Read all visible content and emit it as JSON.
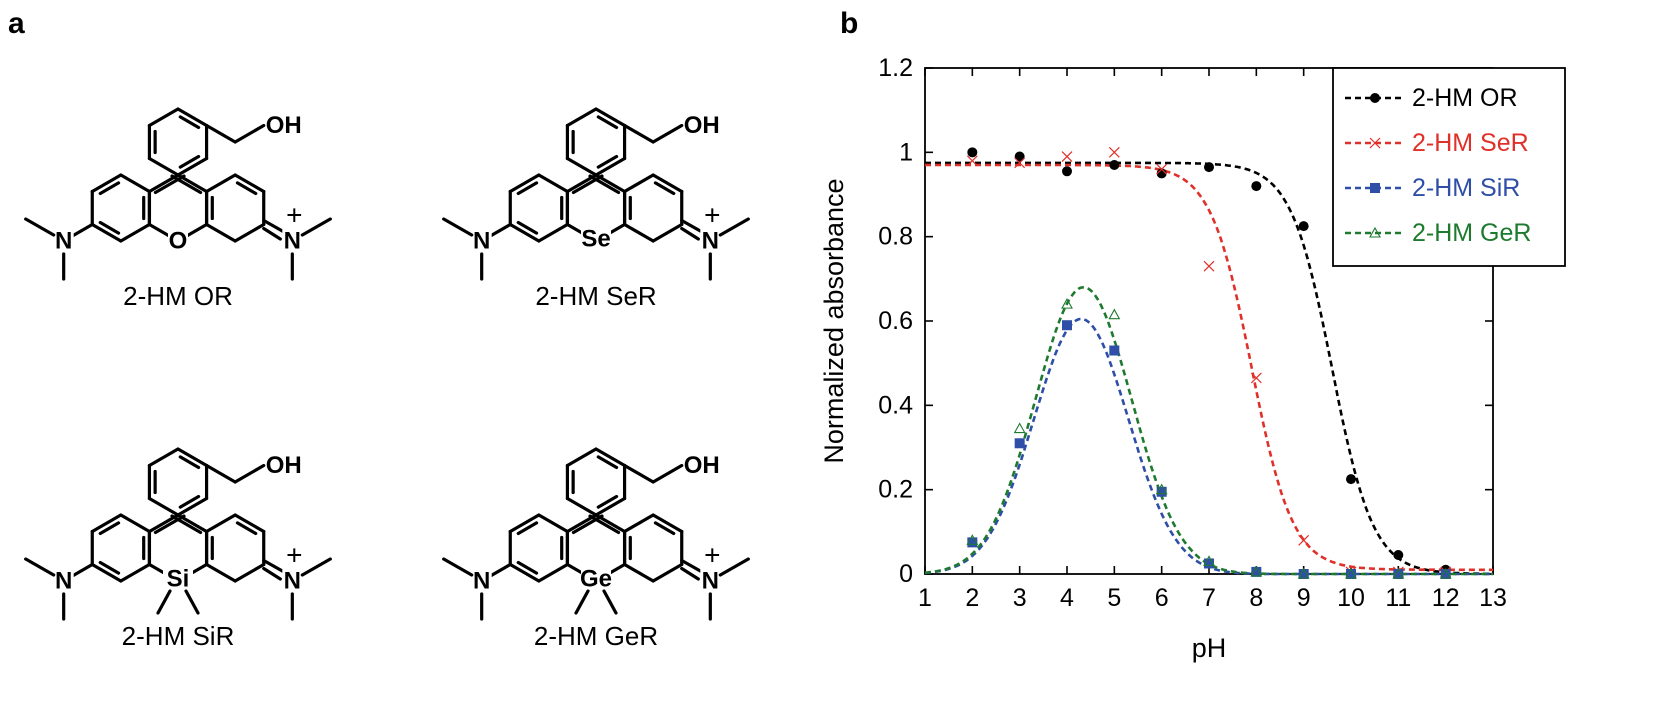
{
  "panels": {
    "a": "a",
    "b": "b"
  },
  "structures": [
    {
      "label": "2-HM OR",
      "heteroatom": "O",
      "has_methyls": false
    },
    {
      "label": "2-HM SeR",
      "heteroatom": "Se",
      "has_methyls": false
    },
    {
      "label": "2-HM SiR",
      "heteroatom": "Si",
      "has_methyls": true
    },
    {
      "label": "2-HM GeR",
      "heteroatom": "Ge",
      "has_methyls": true
    }
  ],
  "atoms": {
    "hydroxyl": "OH",
    "nitrogen": "N",
    "charge": "+"
  },
  "chart_data": {
    "type": "line",
    "xlabel": "pH",
    "ylabel": "Normalized absorbance",
    "xlim": [
      1,
      13
    ],
    "ylim": [
      0,
      1.2
    ],
    "x_ticks": [
      "1",
      "2",
      "3",
      "4",
      "5",
      "6",
      "7",
      "8",
      "9",
      "10",
      "11",
      "12",
      "13"
    ],
    "y_ticks": [
      "0",
      "0.2",
      "0.4",
      "0.6",
      "0.8",
      "1",
      "1.2"
    ],
    "grid": false,
    "legend_position": "top-right",
    "series": [
      {
        "name": "2-HM OR",
        "color": "#000000",
        "marker": "circle",
        "points": [
          [
            2,
            1.0
          ],
          [
            3,
            0.99
          ],
          [
            4,
            0.955
          ],
          [
            5,
            0.97
          ],
          [
            6,
            0.95
          ],
          [
            7,
            0.965
          ],
          [
            8,
            0.92
          ],
          [
            9,
            0.825
          ],
          [
            10,
            0.225
          ],
          [
            11,
            0.045
          ],
          [
            12,
            0.01
          ]
        ],
        "fit": {
          "kind": "sigmoid",
          "top": 0.975,
          "bottom": 0.0,
          "pKa": 9.6,
          "slope": 1.0
        }
      },
      {
        "name": "2-HM SeR",
        "color": "#e0302a",
        "marker": "cross",
        "points": [
          [
            2,
            0.98
          ],
          [
            3,
            0.975
          ],
          [
            4,
            0.99
          ],
          [
            5,
            1.0
          ],
          [
            6,
            0.96
          ],
          [
            7,
            0.73
          ],
          [
            8,
            0.465
          ],
          [
            9,
            0.08
          ],
          [
            10,
            0.005
          ],
          [
            11,
            0.005
          ],
          [
            12,
            0.005
          ]
        ],
        "fit": {
          "kind": "sigmoid",
          "top": 0.97,
          "bottom": 0.01,
          "pKa": 7.9,
          "slope": 1.0
        }
      },
      {
        "name": "2-HM SiR",
        "color": "#2e4ea8",
        "marker": "square",
        "points": [
          [
            2,
            0.075
          ],
          [
            3,
            0.31
          ],
          [
            4,
            0.59
          ],
          [
            5,
            0.53
          ],
          [
            6,
            0.195
          ],
          [
            7,
            0.025
          ],
          [
            8,
            0.005
          ],
          [
            9,
            0.0
          ],
          [
            10,
            0.0
          ],
          [
            11,
            0.0
          ],
          [
            12,
            0.0
          ]
        ],
        "fit": {
          "kind": "bell",
          "amp": 0.605,
          "center": 4.3,
          "width": 1.0
        }
      },
      {
        "name": "2-HM GeR",
        "color": "#1e7a2e",
        "marker": "triangle",
        "points": [
          [
            2,
            0.08
          ],
          [
            3,
            0.345
          ],
          [
            4,
            0.64
          ],
          [
            5,
            0.615
          ],
          [
            6,
            0.2
          ],
          [
            7,
            0.03
          ],
          [
            8,
            0.005
          ],
          [
            9,
            0.0
          ],
          [
            10,
            0.0
          ],
          [
            11,
            0.0
          ],
          [
            12,
            0.0
          ]
        ],
        "fit": {
          "kind": "bell",
          "amp": 0.68,
          "center": 4.35,
          "width": 1.02
        }
      }
    ]
  }
}
